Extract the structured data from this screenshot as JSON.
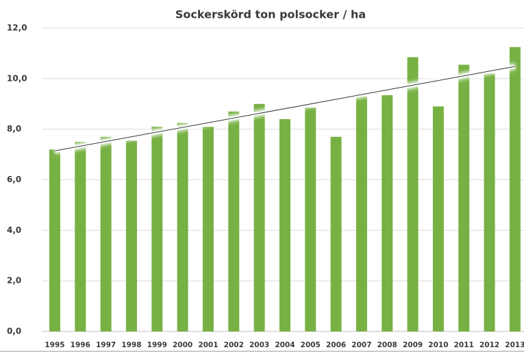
{
  "chart_data": {
    "type": "bar",
    "title": "Sockerskörd ton polsocker / ha",
    "categories": [
      "1995",
      "1996",
      "1997",
      "1998",
      "1999",
      "2000",
      "2001",
      "2002",
      "2003",
      "2004",
      "2005",
      "2006",
      "2007",
      "2008",
      "2009",
      "2010",
      "2011",
      "2012",
      "2013"
    ],
    "values": [
      7.2,
      7.5,
      7.7,
      7.55,
      8.1,
      8.25,
      8.1,
      8.7,
      9.0,
      8.4,
      8.85,
      7.7,
      9.3,
      9.35,
      10.85,
      8.9,
      10.55,
      10.2,
      11.25
    ],
    "color": "#77b144",
    "ylim": [
      0,
      12
    ],
    "yticks": [
      {
        "value": 0,
        "label": "0,0"
      },
      {
        "value": 2,
        "label": "2,0"
      },
      {
        "value": 4,
        "label": "4,0"
      },
      {
        "value": 6,
        "label": "6,0"
      },
      {
        "value": 8,
        "label": "8,0"
      },
      {
        "value": 10,
        "label": "10,0"
      },
      {
        "value": 12,
        "label": "12,0"
      }
    ],
    "grid": true,
    "trendline": true
  }
}
